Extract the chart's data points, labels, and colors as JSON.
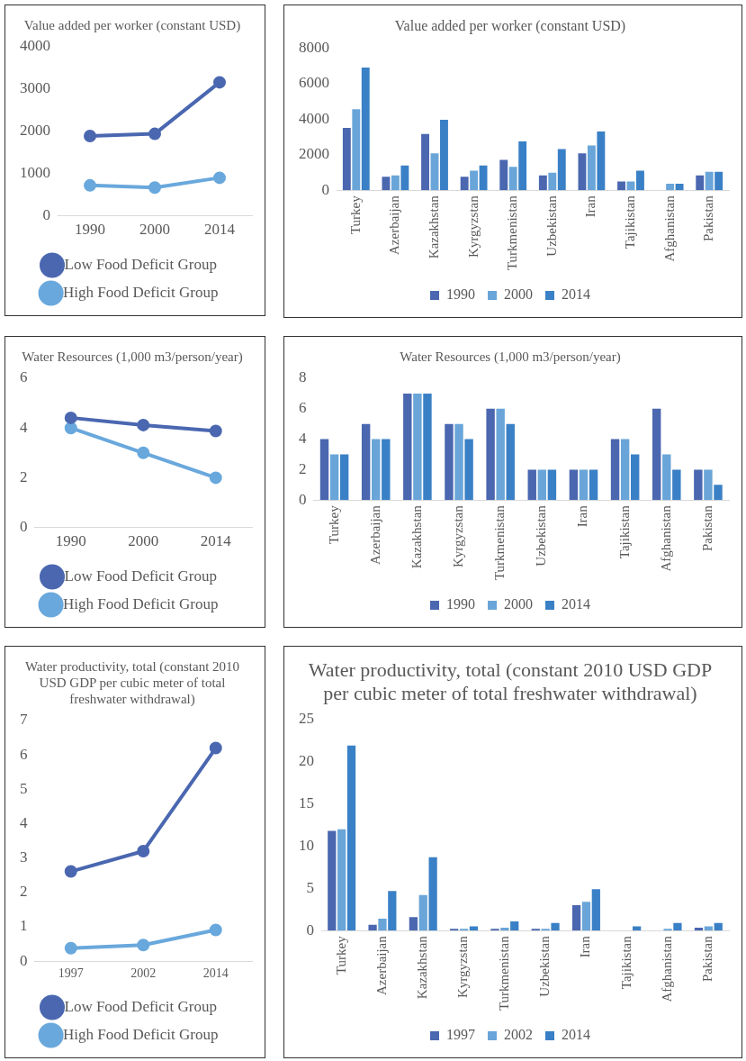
{
  "chart_data": [
    {
      "type": "line",
      "title": "Value added per worker (constant USD)",
      "categories": [
        "1990",
        "2000",
        "2014"
      ],
      "series": [
        {
          "name": "Low Food Deficit Group",
          "color": "#4a67b0",
          "values": [
            1890,
            1940,
            3160
          ]
        },
        {
          "name": "High Food Deficit Group",
          "color": "#69a8dc",
          "values": [
            720,
            670,
            900
          ]
        }
      ],
      "ylim": [
        0,
        4000
      ],
      "yticks": [
        0,
        1000,
        2000,
        3000,
        4000
      ],
      "grid": false,
      "legend": "bottom",
      "marker": "circle"
    },
    {
      "type": "bar",
      "title": "Value added per worker (constant USD)",
      "categories": [
        "Turkey",
        "Azerbaijan",
        "Kazakhstan",
        "Kyrgyzstan",
        "Turkmenistan",
        "Uzbekistan",
        "Iran",
        "Tajikistan",
        "Afghanistan",
        "Pakistan"
      ],
      "series": [
        {
          "name": "1990",
          "color": "#4a67b0",
          "values": [
            3500,
            760,
            3160,
            760,
            1710,
            830,
            2080,
            490,
            null,
            830
          ]
        },
        {
          "name": "2000",
          "color": "#69a5d8",
          "values": [
            4550,
            830,
            2080,
            1100,
            1320,
            980,
            2520,
            490,
            370,
            1030
          ]
        },
        {
          "name": "2014",
          "color": "#3a80c6",
          "values": [
            6900,
            1390,
            3960,
            1390,
            2740,
            2320,
            3300,
            1100,
            370,
            1030
          ]
        }
      ],
      "ylim": [
        0,
        8000
      ],
      "yticks": [
        0,
        2000,
        4000,
        6000,
        8000
      ],
      "grid": false,
      "legend": "bottom"
    },
    {
      "type": "line",
      "title": "Water Resources (1,000 m3/person/year)",
      "categories": [
        "1990",
        "2000",
        "2014"
      ],
      "series": [
        {
          "name": "Low Food Deficit Group",
          "color": "#4a67b0",
          "values": [
            4.41,
            4.12,
            3.88
          ]
        },
        {
          "name": "High Food Deficit Group",
          "color": "#69a8dc",
          "values": [
            4.0,
            3.0,
            2.0
          ]
        }
      ],
      "ylim": [
        0,
        6
      ],
      "yticks": [
        0,
        2,
        4,
        6
      ],
      "grid": false,
      "legend": "bottom",
      "marker": "circle"
    },
    {
      "type": "bar",
      "title": "Water Resources (1,000 m3/person/year)",
      "categories": [
        "Turkey",
        "Azerbaijan",
        "Kazakhstan",
        "Kyrgyzstan",
        "Turkmenistan",
        "Uzbekistan",
        "Iran",
        "Tajikistan",
        "Afghanistan",
        "Pakistan"
      ],
      "series": [
        {
          "name": "1990",
          "color": "#4a67b0",
          "values": [
            4,
            5,
            7,
            5,
            6,
            2,
            2,
            4,
            6,
            2
          ]
        },
        {
          "name": "2000",
          "color": "#69a5d8",
          "values": [
            3,
            4,
            7,
            5,
            6,
            2,
            2,
            4,
            3,
            2
          ]
        },
        {
          "name": "2014",
          "color": "#3a80c6",
          "values": [
            3,
            4,
            7,
            4,
            5,
            2,
            2,
            3,
            2,
            1
          ]
        }
      ],
      "ylim": [
        0,
        8
      ],
      "yticks": [
        0,
        2,
        4,
        6,
        8
      ],
      "grid": false,
      "legend": "bottom"
    },
    {
      "type": "line",
      "title": "Water productivity, total (constant 2010 USD GDP per cubic meter of total freshwater withdrawal)",
      "categories": [
        "1997",
        "2002",
        "2014"
      ],
      "series": [
        {
          "name": "Low Food Deficit Group",
          "color": "#4a67b0",
          "values": [
            2.61,
            3.2,
            6.2
          ]
        },
        {
          "name": "High Food Deficit Group",
          "color": "#69a8dc",
          "values": [
            0.38,
            0.47,
            0.91
          ]
        }
      ],
      "ylim": [
        0,
        7
      ],
      "yticks": [
        0,
        1,
        2,
        3,
        4,
        5,
        6,
        7
      ],
      "grid": false,
      "legend": "bottom",
      "marker": "circle"
    },
    {
      "type": "bar",
      "title": "Water productivity, total (constant 2010 USD GDP per cubic meter of total freshwater withdrawal)",
      "categories": [
        "Turkey",
        "Azerbaijan",
        "Kazakhstan",
        "Kyrgyzstan",
        "Turkmenistan",
        "Uzbekistan",
        "Iran",
        "Tajikistan",
        "Afghanistan",
        "Pakistan"
      ],
      "series": [
        {
          "name": "1997",
          "color": "#4a67b0",
          "values": [
            11.8,
            0.7,
            1.6,
            0.2,
            0.2,
            0.2,
            3.0,
            null,
            null,
            0.35
          ]
        },
        {
          "name": "2002",
          "color": "#69a5d8",
          "values": [
            12.0,
            1.4,
            4.2,
            0.2,
            0.35,
            0.2,
            3.4,
            null,
            0.2,
            0.5
          ]
        },
        {
          "name": "2014",
          "color": "#3a80c6",
          "values": [
            21.9,
            4.7,
            8.7,
            0.5,
            1.1,
            0.9,
            4.9,
            0.5,
            0.9,
            0.9
          ]
        }
      ],
      "ylim": [
        0,
        25
      ],
      "yticks": [
        0,
        5,
        10,
        15,
        20,
        25
      ],
      "grid": false,
      "legend": "bottom"
    }
  ]
}
